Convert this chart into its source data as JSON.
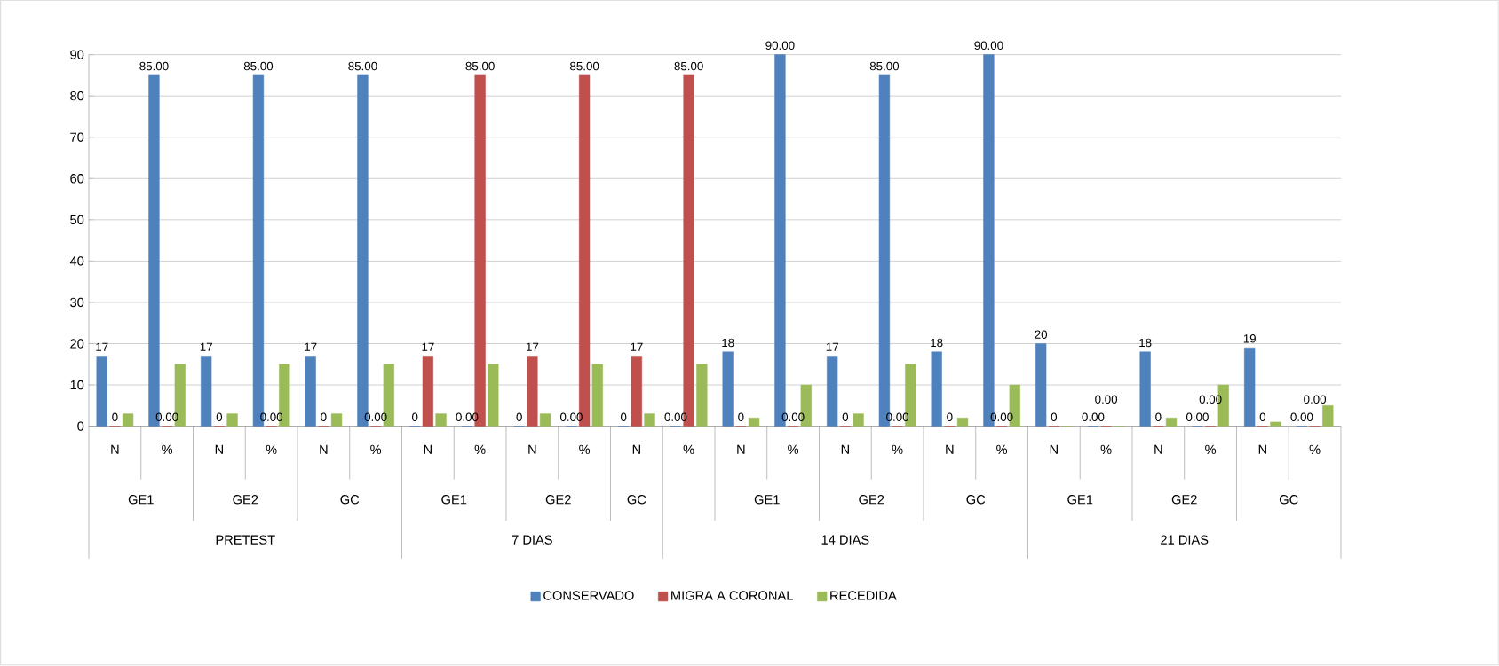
{
  "chart_data": {
    "type": "bar",
    "categories": [
      "N",
      "%",
      "N",
      "%",
      "N",
      "%",
      "N",
      "%",
      "N",
      "%",
      "N",
      "%",
      "N",
      "%",
      "N",
      "%",
      "N",
      "%",
      "N",
      "%",
      "N",
      "%",
      "N",
      "%"
    ],
    "series": [
      {
        "name": "CONSERVADO",
        "color": "#4f81bd",
        "values": [
          17,
          85,
          17,
          85,
          17,
          85,
          0,
          0,
          0,
          0,
          0,
          0,
          18,
          90,
          17,
          85,
          18,
          90,
          20,
          0,
          18,
          0,
          19,
          0
        ],
        "value_labels": [
          "17",
          "85.00",
          "17",
          "85.00",
          "17",
          "85.00",
          "0",
          "0.00",
          "0",
          "0.00",
          "0",
          "0.00",
          "18",
          "90.00",
          "17",
          "85.00",
          "18",
          "90.00",
          "20",
          "0.00",
          "18",
          "0.00",
          "19",
          "0.00"
        ]
      },
      {
        "name": "MIGRA A CORONAL",
        "color": "#c0504d",
        "values": [
          0,
          0,
          0,
          0,
          0,
          0,
          17,
          85,
          17,
          85,
          17,
          85,
          0,
          0,
          0,
          0,
          0,
          0,
          0,
          0,
          0,
          0,
          0,
          0
        ],
        "value_labels": [
          "0",
          "0.00",
          "0",
          "0.00",
          "0",
          "0.00",
          "17",
          "85.00",
          "17",
          "85.00",
          "17",
          "85.00",
          "0",
          "0.00",
          "0",
          "0.00",
          "0",
          "0.00",
          "0",
          "0.00",
          "0",
          "0.00",
          "0",
          "0.00"
        ]
      },
      {
        "name": "RECEDIDA",
        "color": "#9bbb59",
        "values": [
          3,
          15,
          3,
          15,
          3,
          15,
          3,
          15,
          3,
          15,
          3,
          15,
          2,
          10,
          3,
          15,
          2,
          10,
          0,
          0,
          2,
          10,
          1,
          5
        ]
      }
    ],
    "ylim": [
      0,
      90
    ],
    "yticks": [
      0,
      10,
      20,
      30,
      40,
      50,
      60,
      70,
      80,
      90
    ],
    "grid": "y",
    "legend": "bottom",
    "annotations": [
      "GE1",
      "GE2",
      "GC",
      "GE1",
      "GE2",
      "GC",
      "GE1",
      "GE2",
      "GC",
      "GE1",
      "GE2",
      "GC",
      "PRETEST",
      "7 DIAS",
      "14 DIAS",
      "21 DIAS"
    ]
  }
}
